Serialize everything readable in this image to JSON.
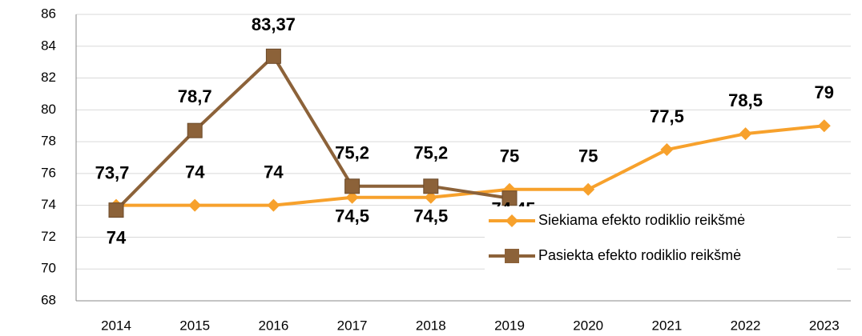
{
  "chart_data": {
    "type": "line",
    "categories": [
      "2014",
      "2015",
      "2016",
      "2017",
      "2018",
      "2019",
      "2020",
      "2021",
      "2022",
      "2023"
    ],
    "ylim": [
      68,
      86
    ],
    "yticks": [
      68,
      70,
      72,
      74,
      76,
      78,
      80,
      82,
      84,
      86
    ],
    "grid": true,
    "series": [
      {
        "name": "Siekiama efekto rodiklio reikšmė",
        "color": "#F7A12C",
        "marker": "diamond",
        "values": [
          74,
          74,
          74,
          74.5,
          74.5,
          75,
          75,
          77.5,
          78.5,
          79
        ],
        "value_labels": [
          "74",
          "74",
          "74",
          "74,5",
          "74,5",
          "75",
          "75",
          "77,5",
          "78,5",
          "79"
        ]
      },
      {
        "name": "Pasiekta efekto rodiklio reikšmė",
        "color": "#8C6239",
        "marker": "square",
        "values": [
          73.7,
          78.7,
          83.37,
          75.2,
          75.2,
          74.45,
          null,
          null,
          null,
          null
        ],
        "value_labels": [
          "73,7",
          "78,7",
          "83,37",
          "75,2",
          "75,2",
          "74,45",
          null,
          null,
          null,
          null
        ]
      }
    ]
  }
}
